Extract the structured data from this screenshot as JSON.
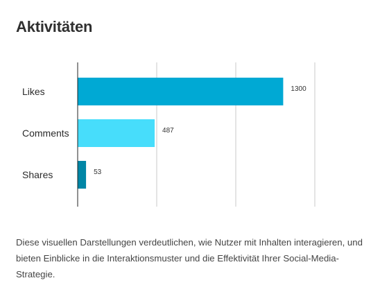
{
  "page": {
    "title": "Aktivitäten",
    "caption": "Diese visuellen Darstellungen verdeutlichen, wie Nutzer mit Inhalten interagieren, und bieten Einblicke in die Interaktionsmuster und die Effektivität Ihrer Social-Media-Strategie."
  },
  "chart_data": {
    "type": "bar",
    "orientation": "horizontal",
    "categories": [
      "Likes",
      "Comments",
      "Shares"
    ],
    "values": [
      1300,
      487,
      53
    ],
    "colors": [
      "#00a9d4",
      "#47ddfb",
      "#0086a6"
    ],
    "xlim": [
      0,
      1500
    ],
    "grid": true,
    "title": "",
    "xlabel": "",
    "ylabel": ""
  }
}
